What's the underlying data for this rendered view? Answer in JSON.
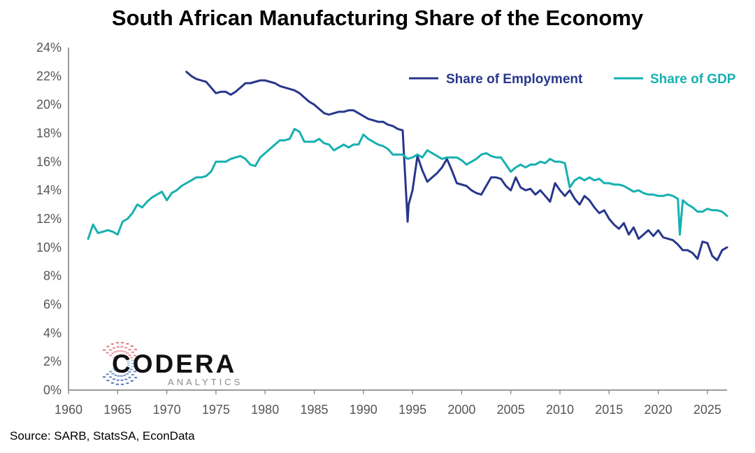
{
  "chart_data": {
    "type": "line",
    "title": "South African Manufacturing Share of the Economy",
    "xlabel": "",
    "ylabel": "",
    "xlim": [
      1960,
      2027
    ],
    "ylim": [
      0,
      24
    ],
    "x_ticks": [
      "1960",
      "1965",
      "1970",
      "1975",
      "1980",
      "1985",
      "1990",
      "1995",
      "2000",
      "2005",
      "2010",
      "2015",
      "2020",
      "2025"
    ],
    "y_ticks": [
      "0%",
      "2%",
      "4%",
      "6%",
      "8%",
      "10%",
      "12%",
      "14%",
      "16%",
      "18%",
      "20%",
      "22%",
      "24%"
    ],
    "grid": false,
    "legend_position": "top-right",
    "series": [
      {
        "name": "Share of Employment",
        "color": "#28378c",
        "x": [
          1972,
          1972.5,
          1973,
          1973.5,
          1974,
          1974.5,
          1975,
          1975.5,
          1976,
          1976.5,
          1977,
          1977.5,
          1978,
          1978.5,
          1979,
          1979.5,
          1980,
          1980.5,
          1981,
          1981.5,
          1982,
          1982.5,
          1983,
          1983.5,
          1984,
          1984.5,
          1985,
          1985.5,
          1986,
          1986.5,
          1987,
          1987.5,
          1988,
          1988.5,
          1989,
          1989.5,
          1990,
          1990.5,
          1991,
          1991.5,
          1992,
          1992.5,
          1993,
          1993.5,
          1994,
          1994.5,
          1994.6,
          1995,
          1995.5,
          1996,
          1996.5,
          1997,
          1997.5,
          1998,
          1998.5,
          1999,
          1999.5,
          2000,
          2000.5,
          2001,
          2001.5,
          2002,
          2002.5,
          2003,
          2003.5,
          2004,
          2004.5,
          2005,
          2005.5,
          2006,
          2006.5,
          2007,
          2007.5,
          2008,
          2008.5,
          2009,
          2009.5,
          2010,
          2010.5,
          2011,
          2011.5,
          2012,
          2012.5,
          2013,
          2013.5,
          2014,
          2014.5,
          2015,
          2015.5,
          2016,
          2016.5,
          2017,
          2017.5,
          2018,
          2018.5,
          2019,
          2019.5,
          2020,
          2020.5,
          2021,
          2021.5,
          2022,
          2022.5,
          2023,
          2023.5,
          2024,
          2024.5,
          2025,
          2025.5,
          2026,
          2026.5,
          2027
        ],
        "values": [
          22.3,
          22.0,
          21.8,
          21.7,
          21.6,
          21.2,
          20.8,
          20.9,
          20.9,
          20.7,
          20.9,
          21.2,
          21.5,
          21.5,
          21.6,
          21.7,
          21.7,
          21.6,
          21.5,
          21.3,
          21.2,
          21.1,
          21.0,
          20.8,
          20.5,
          20.2,
          20.0,
          19.7,
          19.4,
          19.3,
          19.4,
          19.5,
          19.5,
          19.6,
          19.6,
          19.4,
          19.2,
          19.0,
          18.9,
          18.8,
          18.8,
          18.6,
          18.5,
          18.3,
          18.2,
          11.8,
          13.0,
          14.0,
          16.4,
          15.4,
          14.6,
          14.9,
          15.2,
          15.6,
          16.2,
          15.4,
          14.5,
          14.4,
          14.3,
          14.0,
          13.8,
          13.7,
          14.3,
          14.9,
          14.9,
          14.8,
          14.3,
          14.0,
          14.9,
          14.2,
          14.0,
          14.1,
          13.7,
          14.0,
          13.6,
          13.2,
          14.5,
          14.0,
          13.6,
          14.0,
          13.4,
          13.0,
          13.6,
          13.3,
          12.8,
          12.4,
          12.6,
          12.0,
          11.6,
          11.3,
          11.7,
          10.9,
          11.4,
          10.6,
          10.9,
          11.2,
          10.8,
          11.2,
          10.7,
          10.6,
          10.5,
          10.2,
          9.8,
          9.8,
          9.6,
          9.2,
          10.4,
          10.3,
          9.4,
          9.1,
          9.8,
          10.0
        ]
      },
      {
        "name": "Share of GDP",
        "color": "#17b0b0",
        "x": [
          1962,
          1962.5,
          1963,
          1963.5,
          1964,
          1964.5,
          1965,
          1965.5,
          1966,
          1966.5,
          1967,
          1967.5,
          1968,
          1968.5,
          1969,
          1969.5,
          1970,
          1970.5,
          1971,
          1971.5,
          1972,
          1972.5,
          1973,
          1973.5,
          1974,
          1974.5,
          1975,
          1975.5,
          1976,
          1976.5,
          1977,
          1977.5,
          1978,
          1978.5,
          1979,
          1979.5,
          1980,
          1980.5,
          1981,
          1981.5,
          1982,
          1982.5,
          1983,
          1983.5,
          1984,
          1984.5,
          1985,
          1985.5,
          1986,
          1986.5,
          1987,
          1987.5,
          1988,
          1988.5,
          1989,
          1989.5,
          1990,
          1990.5,
          1991,
          1991.5,
          1992,
          1992.5,
          1993,
          1993.5,
          1994,
          1994.5,
          1995,
          1995.5,
          1996,
          1996.5,
          1997,
          1997.5,
          1998,
          1998.5,
          1999,
          1999.5,
          2000,
          2000.5,
          2001,
          2001.5,
          2002,
          2002.5,
          2003,
          2003.5,
          2004,
          2004.5,
          2005,
          2005.5,
          2006,
          2006.5,
          2007,
          2007.5,
          2008,
          2008.5,
          2009,
          2009.5,
          2010,
          2010.5,
          2011,
          2011.5,
          2012,
          2012.5,
          2013,
          2013.5,
          2014,
          2014.5,
          2015,
          2015.5,
          2016,
          2016.5,
          2017,
          2017.5,
          2018,
          2018.5,
          2019,
          2019.5,
          2020,
          2020.5,
          2021,
          2021.5,
          2022,
          2022.2,
          2022.5,
          2023,
          2023.5,
          2024,
          2024.5,
          2025,
          2025.5,
          2026,
          2026.5,
          2027
        ],
        "values": [
          10.6,
          11.6,
          11.0,
          11.1,
          11.2,
          11.1,
          10.9,
          11.8,
          12.0,
          12.4,
          13.0,
          12.8,
          13.2,
          13.5,
          13.7,
          13.9,
          13.3,
          13.8,
          14.0,
          14.3,
          14.5,
          14.7,
          14.9,
          14.9,
          15.0,
          15.3,
          16.0,
          16.0,
          16.0,
          16.2,
          16.3,
          16.4,
          16.2,
          15.8,
          15.7,
          16.3,
          16.6,
          16.9,
          17.2,
          17.5,
          17.5,
          17.6,
          18.3,
          18.1,
          17.4,
          17.4,
          17.4,
          17.6,
          17.3,
          17.2,
          16.8,
          17.0,
          17.2,
          17.0,
          17.2,
          17.2,
          17.9,
          17.6,
          17.4,
          17.2,
          17.1,
          16.9,
          16.5,
          16.5,
          16.5,
          16.2,
          16.3,
          16.5,
          16.3,
          16.8,
          16.6,
          16.4,
          16.2,
          16.3,
          16.3,
          16.3,
          16.1,
          15.8,
          16.0,
          16.2,
          16.5,
          16.6,
          16.4,
          16.3,
          16.3,
          15.8,
          15.3,
          15.6,
          15.8,
          15.6,
          15.8,
          15.8,
          16.0,
          15.9,
          16.2,
          16.0,
          16.0,
          15.9,
          14.2,
          14.7,
          14.9,
          14.7,
          14.9,
          14.7,
          14.8,
          14.5,
          14.5,
          14.4,
          14.4,
          14.3,
          14.1,
          13.9,
          14.0,
          13.8,
          13.7,
          13.7,
          13.6,
          13.6,
          13.7,
          13.6,
          13.4,
          10.9,
          13.3,
          13.0,
          12.8,
          12.5,
          12.5,
          12.7,
          12.6,
          12.6,
          12.5,
          12.2
        ]
      }
    ]
  },
  "source_label": "Source: SARB, StatsSA, EconData",
  "logo": {
    "word": "CODERA",
    "sub": "ANALYTICS",
    "colors": [
      "#e05a6a",
      "#2b5db0",
      "#6aa0d8"
    ]
  }
}
